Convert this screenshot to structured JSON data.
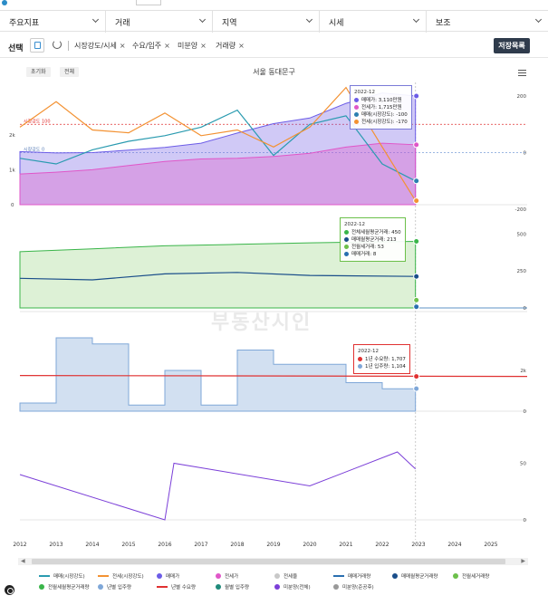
{
  "filters": [
    {
      "label": "주요지표"
    },
    {
      "label": "거래"
    },
    {
      "label": "지역"
    },
    {
      "label": "시세"
    },
    {
      "label": "보조"
    }
  ],
  "selection": {
    "label": "선택",
    "chips": [
      "시장강도/시세",
      "수요/입주",
      "미분양",
      "거래량"
    ],
    "save_label": "저장목록"
  },
  "chart_header": {
    "zoom_buttons": [
      "초기화",
      "전체"
    ],
    "title": "서울 동대문구"
  },
  "watermark": "부동산시인",
  "tooltips": [
    {
      "date": "2022-12",
      "rows": [
        {
          "label": "매매가: 3,110만원",
          "color": "#6c5ce7"
        },
        {
          "label": "전세가: 1,715만원",
          "color": "#e056c8"
        },
        {
          "label": "매매(시장강도): -100",
          "color": "#2a7fb0"
        },
        {
          "label": "전세(시장강도): -170",
          "color": "#f39233"
        }
      ]
    },
    {
      "date": "2022-12",
      "rows": [
        {
          "label": "전체세월평균거래: 450",
          "color": "#3ab54a"
        },
        {
          "label": "매매월평균거래: 213",
          "color": "#1a4e8a"
        },
        {
          "label": "전월세거래: 53",
          "color": "#6cc04a"
        },
        {
          "label": "매매거래: 8",
          "color": "#2a6fb0"
        }
      ]
    },
    {
      "date": "2022-12",
      "rows": [
        {
          "label": "1년 수요량: 1,707",
          "color": "#e03131"
        },
        {
          "label": "1년 입주량: 1,104",
          "color": "#7fa7d8"
        }
      ]
    }
  ],
  "legend": [
    {
      "label": "매매(시장강도)",
      "kind": "line",
      "color": "#2a9bb0"
    },
    {
      "label": "전세(시장강도)",
      "kind": "line",
      "color": "#f39233"
    },
    {
      "label": "매매가",
      "kind": "dot",
      "color": "#6c5ce7"
    },
    {
      "label": "전세가",
      "kind": "dot",
      "color": "#e056c8"
    },
    {
      "label": "전세율",
      "kind": "dot",
      "color": "#c8c8c8"
    },
    {
      "label": "매매거래량",
      "kind": "line",
      "color": "#2a6fb0"
    },
    {
      "label": "매매월평균거래량",
      "kind": "dot",
      "color": "#1a4e8a"
    },
    {
      "label": "전월세거래량",
      "kind": "dot",
      "color": "#6cc04a"
    },
    {
      "label": "전월세월평균거래량",
      "kind": "dot",
      "color": "#3ab54a"
    },
    {
      "label": "년별 입주량",
      "kind": "dot",
      "color": "#7fa7d8"
    },
    {
      "label": "년별 수요량",
      "kind": "line",
      "color": "#e03131"
    },
    {
      "label": "월별 입주량",
      "kind": "dot",
      "color": "#1f8a7a"
    },
    {
      "label": "미분양(전체)",
      "kind": "dot",
      "color": "#7b3fd8"
    },
    {
      "label": "미분양(준공후)",
      "kind": "dot",
      "color": "#999999"
    }
  ],
  "chart_data": [
    {
      "type": "line",
      "name": "시장강도/시세",
      "x_range": [
        "2012-01",
        "2025-12"
      ],
      "x_ticks": [
        "2012",
        "2013",
        "2014",
        "2015",
        "2016",
        "2017",
        "2018",
        "2019",
        "2020",
        "2021",
        "2022",
        "2023",
        "2024",
        "2025"
      ],
      "left_axis_ticks": [
        "2k",
        "1k",
        "0"
      ],
      "right_axis_ticks": [
        "200",
        "0",
        "-200"
      ],
      "ref_lines": [
        {
          "label": "시장강도 100",
          "value": 100
        },
        {
          "label": "시장강도 0",
          "value": 0
        }
      ],
      "series": [
        {
          "name": "매매가",
          "x": [
            "2012-01",
            "2013-01",
            "2014-01",
            "2015-01",
            "2016-01",
            "2017-01",
            "2018-01",
            "2019-01",
            "2020-01",
            "2021-01",
            "2022-01",
            "2022-12"
          ],
          "y": [
            1520,
            1480,
            1490,
            1560,
            1640,
            1760,
            2050,
            2320,
            2480,
            2900,
            3200,
            3110
          ]
        },
        {
          "name": "전세가",
          "x": [
            "2012-01",
            "2013-01",
            "2014-01",
            "2015-01",
            "2016-01",
            "2017-01",
            "2018-01",
            "2019-01",
            "2020-01",
            "2021-01",
            "2022-01",
            "2022-12"
          ],
          "y": [
            880,
            930,
            1000,
            1120,
            1240,
            1310,
            1330,
            1380,
            1470,
            1650,
            1760,
            1715
          ]
        },
        {
          "name": "매매(시장강도)",
          "x": [
            "2012-01",
            "2013-01",
            "2014-01",
            "2015-01",
            "2016-01",
            "2017-01",
            "2018-01",
            "2019-01",
            "2020-01",
            "2021-01",
            "2022-01",
            "2022-12"
          ],
          "y": [
            -20,
            -40,
            10,
            40,
            60,
            90,
            150,
            -10,
            100,
            130,
            -40,
            -100
          ]
        },
        {
          "name": "전세(시장강도)",
          "x": [
            "2012-01",
            "2013-01",
            "2014-01",
            "2015-01",
            "2016-01",
            "2017-01",
            "2018-01",
            "2019-01",
            "2020-01",
            "2021-01",
            "2022-01",
            "2022-12"
          ],
          "y": [
            90,
            180,
            80,
            70,
            140,
            60,
            80,
            20,
            90,
            230,
            20,
            -170
          ]
        }
      ]
    },
    {
      "type": "line",
      "name": "거래량",
      "right_axis_ticks": [
        "500",
        "250",
        "0"
      ],
      "series": [
        {
          "name": "전월세월평균거래량",
          "x": [
            "2012-01",
            "2014-01",
            "2016-01",
            "2018-01",
            "2020-01",
            "2022-12"
          ],
          "y": [
            380,
            400,
            420,
            430,
            440,
            450
          ]
        },
        {
          "name": "매매월평균거래량",
          "x": [
            "2012-01",
            "2014-01",
            "2016-01",
            "2018-01",
            "2020-01",
            "2022-12"
          ],
          "y": [
            200,
            190,
            230,
            240,
            220,
            213
          ]
        },
        {
          "name": "전월세거래량",
          "x": [
            "2022-12"
          ],
          "y": [
            53
          ]
        },
        {
          "name": "매매거래량",
          "x": [
            "2022-12"
          ],
          "y": [
            8
          ]
        }
      ]
    },
    {
      "type": "bar",
      "name": "수요/입주",
      "right_axis_ticks": [
        "2k",
        "0"
      ],
      "series": [
        {
          "name": "년별 수요량",
          "x": [
            "2012",
            "2022-12"
          ],
          "y": [
            1750,
            1707
          ]
        },
        {
          "name": "년별 입주량",
          "x": [
            "2012",
            "2013",
            "2014",
            "2015",
            "2016",
            "2017",
            "2018",
            "2019",
            "2020",
            "2021",
            "2022-12"
          ],
          "y": [
            400,
            3600,
            3300,
            300,
            2000,
            300,
            3000,
            2300,
            2300,
            1400,
            1104
          ]
        }
      ]
    },
    {
      "type": "line",
      "name": "미분양",
      "right_axis_ticks": [
        "50",
        "0"
      ],
      "series": [
        {
          "name": "미분양(전체)",
          "x": [
            "2012-01",
            "2016-01",
            "2016-04",
            "2020-01",
            "2022-06",
            "2022-12"
          ],
          "y": [
            40,
            0,
            50,
            30,
            60,
            45
          ]
        }
      ]
    }
  ]
}
